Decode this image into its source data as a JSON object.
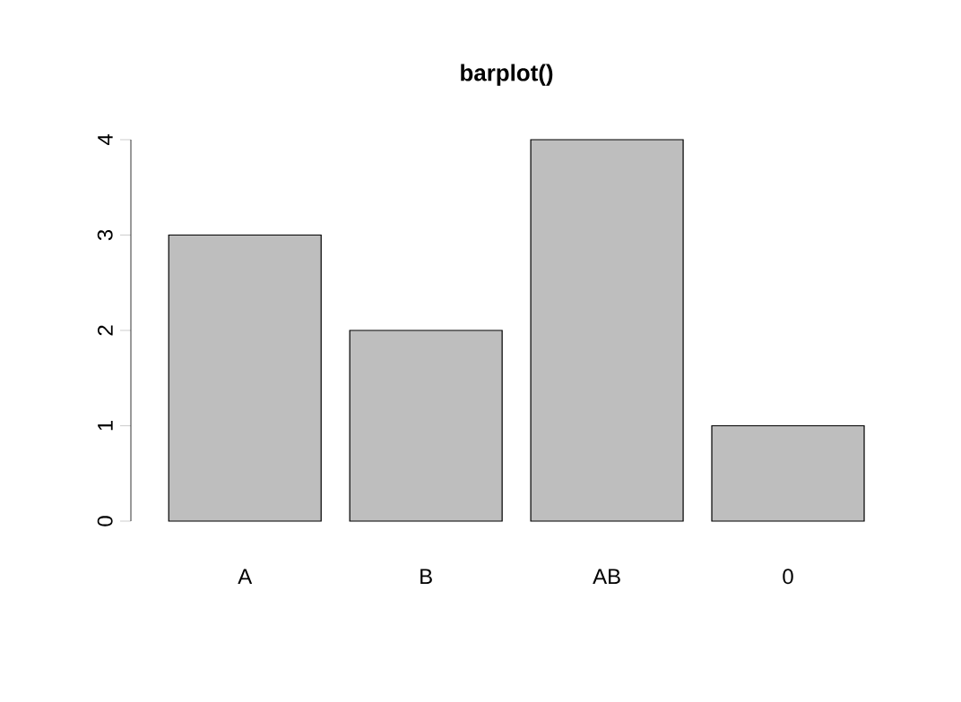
{
  "chart_data": {
    "type": "bar",
    "title": "barplot()",
    "categories": [
      "A",
      "B",
      "AB",
      "0"
    ],
    "values": [
      3,
      2,
      4,
      1
    ],
    "color": "#bebebe",
    "ylim": [
      0,
      4
    ],
    "yticks": [
      0,
      1,
      2,
      3,
      4
    ]
  }
}
